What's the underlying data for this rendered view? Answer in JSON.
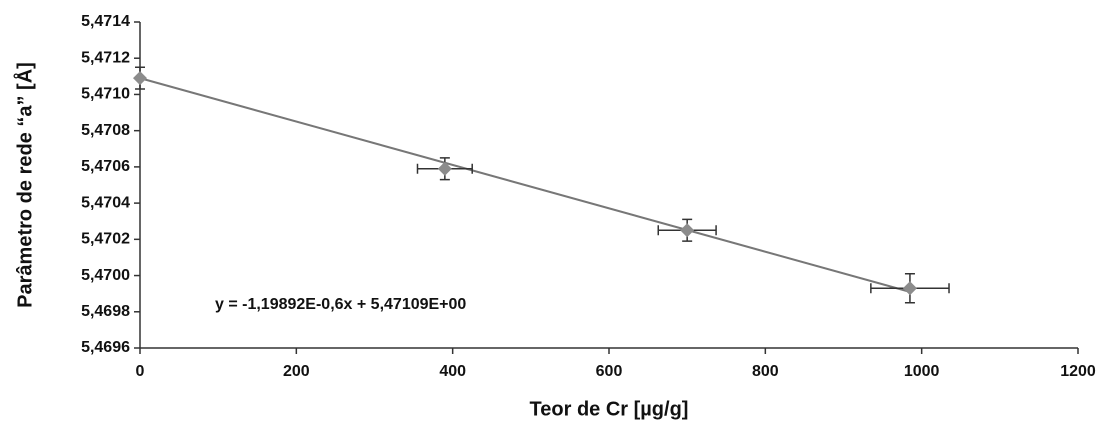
{
  "chart_data": {
    "type": "scatter",
    "x_label": "Teor de Cr [µg/g]",
    "y_label": "Parâmetro de rede “a” [Å]",
    "annotation": "y = -1,19892E-0,6x + 5,47109E+00",
    "xlim": [
      0,
      1200
    ],
    "xticks": [
      0,
      200,
      400,
      600,
      800,
      1000,
      1200
    ],
    "ylim": [
      5.4696,
      5.4714
    ],
    "yticks": [
      {
        "value": 5.4696,
        "label": "5,4696"
      },
      {
        "value": 5.4698,
        "label": "5,4698"
      },
      {
        "value": 5.47,
        "label": "5,4700"
      },
      {
        "value": 5.4702,
        "label": "5,4702"
      },
      {
        "value": 5.4704,
        "label": "5,4704"
      },
      {
        "value": 5.4706,
        "label": "5,4706"
      },
      {
        "value": 5.4708,
        "label": "5,4708"
      },
      {
        "value": 5.471,
        "label": "5,4710"
      },
      {
        "value": 5.4712,
        "label": "5,4712"
      },
      {
        "value": 5.4714,
        "label": "5,4714"
      }
    ],
    "series": [
      {
        "color": "#8c8c8c",
        "x": [
          0,
          390,
          700,
          985
        ],
        "values": [
          5.47109,
          5.47059,
          5.47025,
          5.46993
        ],
        "xerr": [
          0,
          35,
          37,
          50
        ],
        "yerr": [
          6e-05,
          6e-05,
          6e-05,
          8e-05
        ]
      }
    ],
    "trendline": {
      "color": "#777777",
      "x": [
        0,
        985
      ],
      "values": [
        5.47109,
        5.46991
      ]
    }
  }
}
